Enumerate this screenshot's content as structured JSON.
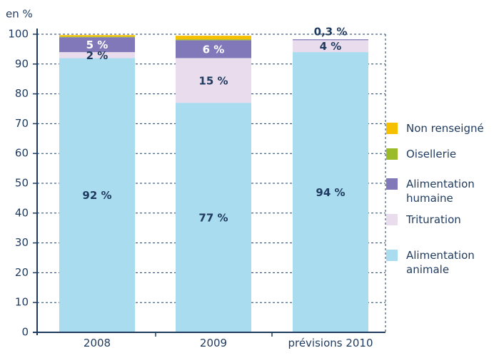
{
  "chart_data": {
    "type": "stacked_bar",
    "y_label": "en %",
    "categories": [
      "2008",
      "2009",
      "prévisions 2010"
    ],
    "ylim": [
      0,
      100
    ],
    "yticks": [
      0,
      10,
      20,
      30,
      40,
      50,
      60,
      70,
      80,
      90,
      100
    ],
    "grid": true,
    "legend": "right",
    "series": [
      {
        "name": "Alimentation animale",
        "color": "#aadcf0",
        "label_color": "#1f3a5f",
        "values": [
          92,
          77,
          94
        ],
        "value_labels": [
          "92 %",
          "77 %",
          "94 %"
        ]
      },
      {
        "name": "Trituration",
        "color": "#e8dced",
        "label_color": "#1f3a5f",
        "values": [
          2,
          15,
          4
        ],
        "value_labels": [
          "2 %",
          "15 %",
          "4 %"
        ]
      },
      {
        "name": "Alimentation humaine",
        "color": "#8078b8",
        "label_color": "#ffffff",
        "values": [
          5,
          6,
          0.3
        ],
        "value_labels": [
          "5 %",
          "6 %",
          "0,3 %"
        ]
      },
      {
        "name": "Oisellerie",
        "color": "#9bbb2a",
        "label_color": "#1f3a5f",
        "values": [
          0.2,
          0.3,
          0
        ],
        "value_labels": [
          null,
          null,
          null
        ]
      },
      {
        "name": "Non renseigné",
        "color": "#f5c000",
        "label_color": "#1f3a5f",
        "values": [
          0.5,
          1.2,
          0
        ],
        "value_labels": [
          null,
          null,
          null
        ]
      }
    ]
  }
}
